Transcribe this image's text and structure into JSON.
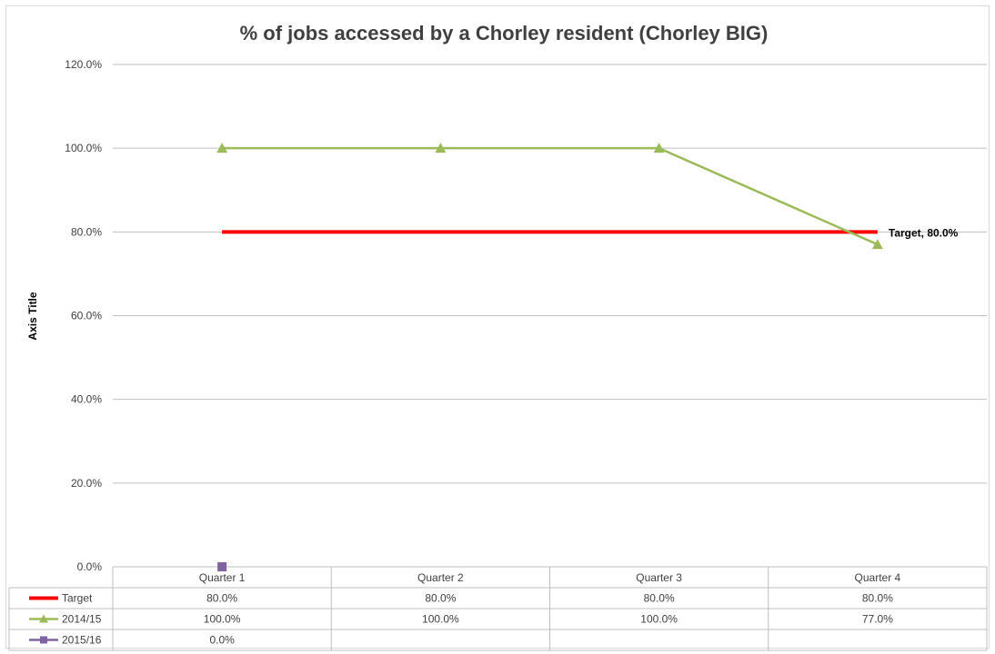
{
  "chart_data": {
    "type": "line",
    "title": "% of jobs accessed by a Chorley resident (Chorley BIG)",
    "xlabel": "",
    "ylabel": "Axis Title",
    "ylim": [
      0,
      120
    ],
    "y_ticks": [
      "0.0%",
      "20.0%",
      "40.0%",
      "60.0%",
      "80.0%",
      "100.0%",
      "120.0%"
    ],
    "y_tick_values": [
      0,
      20,
      40,
      60,
      80,
      100,
      120
    ],
    "categories": [
      "Quarter 1",
      "Quarter 2",
      "Quarter 3",
      "Quarter 4"
    ],
    "grid": true,
    "legend": "data-table",
    "series": [
      {
        "name": "Target",
        "values": [
          80,
          80,
          80,
          80
        ],
        "labels": [
          "80.0%",
          "80.0%",
          "80.0%",
          "80.0%"
        ],
        "color": "#ff0000",
        "marker": "none"
      },
      {
        "name": "2014/15",
        "values": [
          100,
          100,
          100,
          77
        ],
        "labels": [
          "100.0%",
          "100.0%",
          "100.0%",
          "77.0%"
        ],
        "color": "#9bbb59",
        "marker": "triangle"
      },
      {
        "name": "2015/16",
        "values": [
          0,
          null,
          null,
          null
        ],
        "labels": [
          "0.0%",
          "",
          "",
          ""
        ],
        "color": "#8064a2",
        "marker": "square"
      }
    ],
    "annotations": [
      {
        "series": "Target",
        "category": "Quarter 4",
        "text": "Target, 80.0%"
      }
    ]
  }
}
